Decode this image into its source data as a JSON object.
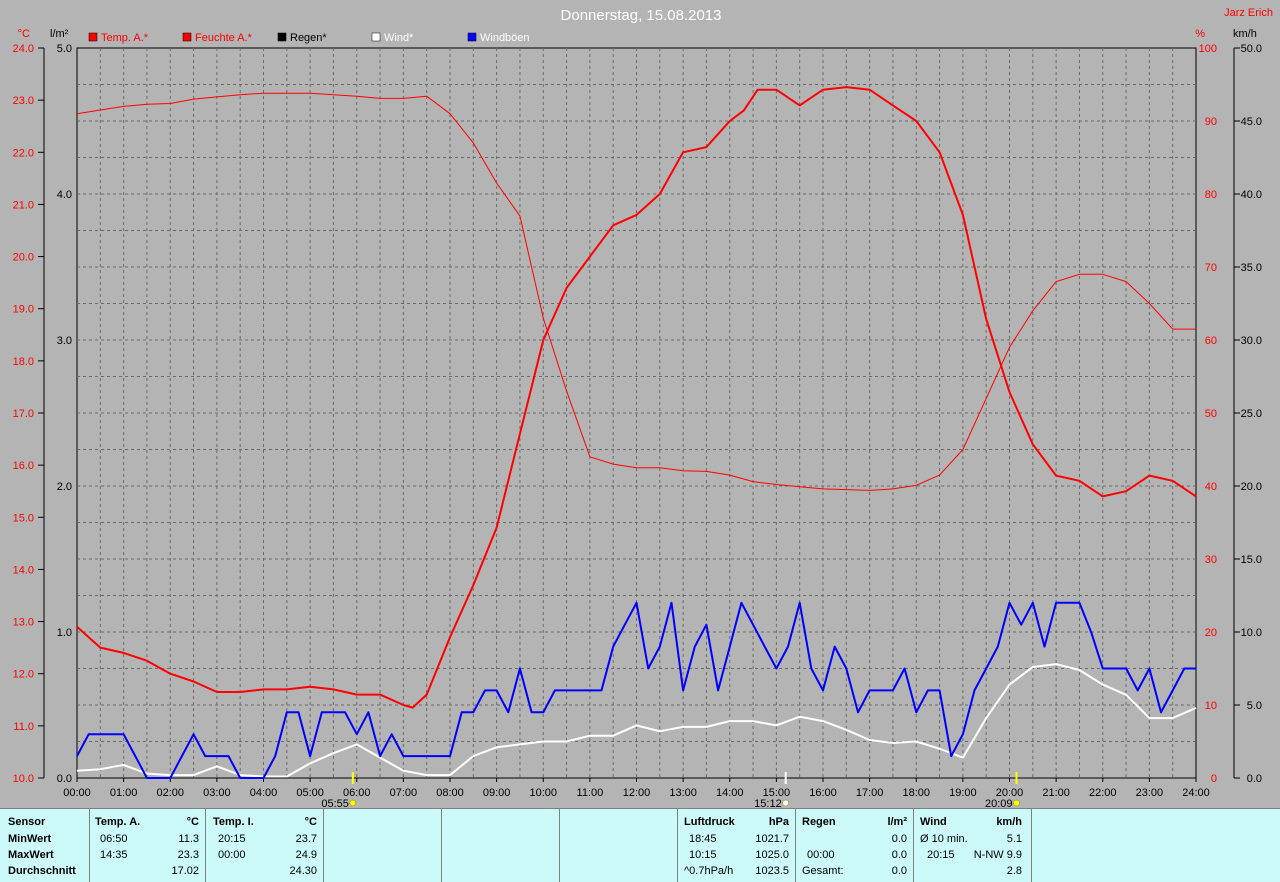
{
  "title": "Donnerstag, 15.08.2013",
  "author": "Jarz Erich",
  "axis_units": {
    "temp": "°C",
    "rain": "l/m²",
    "hum": "%",
    "wind": "km/h"
  },
  "legend": [
    {
      "label": "Temp. A.*",
      "color": "#ff0000",
      "text_color": "#ff0000"
    },
    {
      "label": "Feuchte A.*",
      "color": "#ff0000",
      "text_color": "#ff0000"
    },
    {
      "label": "Regen*",
      "color": "#000000",
      "text_color": "#000000"
    },
    {
      "label": "Wind*",
      "color": "#ffffff",
      "text_color": "#ffffff"
    },
    {
      "label": "Windböen",
      "color": "#0000ff",
      "text_color": "#ffffff"
    }
  ],
  "markers": {
    "sunrise": "05:55",
    "noon": "15:12",
    "sunset": "20:09"
  },
  "chart_data": {
    "type": "line",
    "x_ticks": [
      "00:00",
      "01:00",
      "02:00",
      "03:00",
      "04:00",
      "05:00",
      "06:00",
      "07:00",
      "08:00",
      "09:00",
      "10:00",
      "11:00",
      "12:00",
      "13:00",
      "14:00",
      "15:00",
      "16:00",
      "17:00",
      "18:00",
      "19:00",
      "20:00",
      "21:00",
      "22:00",
      "23:00",
      "24:00"
    ],
    "axes": {
      "temp": {
        "ticks": [
          "10.0",
          "11.0",
          "12.0",
          "13.0",
          "14.0",
          "15.0",
          "16.0",
          "17.0",
          "18.0",
          "19.0",
          "20.0",
          "21.0",
          "22.0",
          "23.0",
          "24.0"
        ],
        "range": [
          10,
          24
        ]
      },
      "rain": {
        "ticks": [
          "0.0",
          "1.0",
          "2.0",
          "3.0",
          "4.0",
          "5.0"
        ],
        "range": [
          0,
          5
        ]
      },
      "hum": {
        "ticks": [
          "0",
          "10",
          "20",
          "30",
          "40",
          "50",
          "60",
          "70",
          "80",
          "90",
          "100"
        ],
        "range": [
          0,
          100
        ]
      },
      "wind": {
        "ticks": [
          "0.0",
          "5.0",
          "10.0",
          "15.0",
          "20.0",
          "25.0",
          "30.0",
          "35.0",
          "40.0",
          "45.0",
          "50.0"
        ],
        "range": [
          0,
          50
        ]
      }
    },
    "grid": true,
    "series": [
      {
        "name": "Temp. A.*",
        "axis": "temp",
        "color": "#ff0000",
        "width": 2,
        "points": [
          [
            0,
            12.9
          ],
          [
            0.5,
            12.5
          ],
          [
            1,
            12.4
          ],
          [
            1.5,
            12.25
          ],
          [
            2,
            12.0
          ],
          [
            2.5,
            11.85
          ],
          [
            3,
            11.65
          ],
          [
            3.5,
            11.65
          ],
          [
            4,
            11.7
          ],
          [
            4.5,
            11.7
          ],
          [
            5,
            11.75
          ],
          [
            5.5,
            11.7
          ],
          [
            6,
            11.6
          ],
          [
            6.5,
            11.6
          ],
          [
            7,
            11.4
          ],
          [
            7.2,
            11.35
          ],
          [
            7.5,
            11.6
          ],
          [
            8,
            12.7
          ],
          [
            8.5,
            13.7
          ],
          [
            9,
            14.8
          ],
          [
            9.5,
            16.6
          ],
          [
            10,
            18.4
          ],
          [
            10.5,
            19.4
          ],
          [
            11,
            20.0
          ],
          [
            11.5,
            20.6
          ],
          [
            12,
            20.8
          ],
          [
            12.5,
            21.2
          ],
          [
            13,
            22.0
          ],
          [
            13.5,
            22.1
          ],
          [
            14,
            22.6
          ],
          [
            14.3,
            22.8
          ],
          [
            14.6,
            23.2
          ],
          [
            15,
            23.2
          ],
          [
            15.5,
            22.9
          ],
          [
            16,
            23.2
          ],
          [
            16.5,
            23.25
          ],
          [
            17,
            23.2
          ],
          [
            17.5,
            22.9
          ],
          [
            18,
            22.6
          ],
          [
            18.5,
            22.0
          ],
          [
            19,
            20.8
          ],
          [
            19.5,
            18.8
          ],
          [
            20,
            17.4
          ],
          [
            20.5,
            16.4
          ],
          [
            21,
            15.8
          ],
          [
            21.5,
            15.7
          ],
          [
            22,
            15.4
          ],
          [
            22.5,
            15.5
          ],
          [
            23,
            15.8
          ],
          [
            23.5,
            15.7
          ],
          [
            24,
            15.4
          ]
        ]
      },
      {
        "name": "Feuchte A.*",
        "axis": "hum",
        "color": "#ff0000",
        "width": 1,
        "points": [
          [
            0,
            91
          ],
          [
            0.5,
            91.5
          ],
          [
            1,
            92
          ],
          [
            1.5,
            92.3
          ],
          [
            2,
            92.4
          ],
          [
            2.5,
            93
          ],
          [
            3,
            93.3
          ],
          [
            3.5,
            93.6
          ],
          [
            4,
            93.8
          ],
          [
            4.5,
            93.8
          ],
          [
            5,
            93.8
          ],
          [
            5.5,
            93.6
          ],
          [
            6,
            93.4
          ],
          [
            6.5,
            93.1
          ],
          [
            7,
            93.1
          ],
          [
            7.5,
            93.4
          ],
          [
            8,
            91
          ],
          [
            8.5,
            87
          ],
          [
            9,
            81.5
          ],
          [
            9.5,
            77
          ],
          [
            10,
            63
          ],
          [
            10.5,
            53
          ],
          [
            11,
            44
          ],
          [
            11.5,
            43
          ],
          [
            12,
            42.5
          ],
          [
            12.5,
            42.5
          ],
          [
            13,
            42.1
          ],
          [
            13.5,
            42
          ],
          [
            14,
            41.5
          ],
          [
            14.5,
            40.6
          ],
          [
            15,
            40.2
          ],
          [
            15.5,
            39.9
          ],
          [
            16,
            39.6
          ],
          [
            16.5,
            39.5
          ],
          [
            17,
            39.4
          ],
          [
            17.5,
            39.6
          ],
          [
            18,
            40.1
          ],
          [
            18.5,
            41.5
          ],
          [
            19,
            45
          ],
          [
            19.5,
            52
          ],
          [
            20,
            59
          ],
          [
            20.5,
            64
          ],
          [
            21,
            68
          ],
          [
            21.5,
            69
          ],
          [
            22,
            69
          ],
          [
            22.5,
            68
          ],
          [
            23,
            65
          ],
          [
            23.5,
            61.5
          ],
          [
            24,
            61.5
          ]
        ]
      },
      {
        "name": "Wind*",
        "axis": "wind",
        "color": "#ffffff",
        "width": 2,
        "points": [
          [
            0,
            0.5
          ],
          [
            0.5,
            0.6
          ],
          [
            1,
            0.9
          ],
          [
            1.5,
            0.3
          ],
          [
            2,
            0.2
          ],
          [
            2.5,
            0.2
          ],
          [
            3,
            0.8
          ],
          [
            3.5,
            0.2
          ],
          [
            4,
            0.1
          ],
          [
            4.5,
            0.1
          ],
          [
            5,
            1.0
          ],
          [
            5.5,
            1.7
          ],
          [
            6,
            2.3
          ],
          [
            6.5,
            1.4
          ],
          [
            7,
            0.5
          ],
          [
            7.5,
            0.2
          ],
          [
            8,
            0.2
          ],
          [
            8.5,
            1.5
          ],
          [
            9,
            2.1
          ],
          [
            9.5,
            2.3
          ],
          [
            10,
            2.5
          ],
          [
            10.5,
            2.5
          ],
          [
            11,
            2.9
          ],
          [
            11.5,
            2.9
          ],
          [
            12,
            3.6
          ],
          [
            12.5,
            3.2
          ],
          [
            13,
            3.5
          ],
          [
            13.5,
            3.5
          ],
          [
            14,
            3.9
          ],
          [
            14.5,
            3.9
          ],
          [
            15,
            3.6
          ],
          [
            15.5,
            4.2
          ],
          [
            16,
            3.9
          ],
          [
            16.5,
            3.3
          ],
          [
            17,
            2.6
          ],
          [
            17.5,
            2.4
          ],
          [
            18,
            2.5
          ],
          [
            18.5,
            2.0
          ],
          [
            19,
            1.4
          ],
          [
            19.5,
            4.1
          ],
          [
            20,
            6.4
          ],
          [
            20.5,
            7.6
          ],
          [
            21,
            7.8
          ],
          [
            21.5,
            7.4
          ],
          [
            22,
            6.4
          ],
          [
            22.5,
            5.7
          ],
          [
            23,
            4.1
          ],
          [
            23.5,
            4.1
          ],
          [
            24,
            4.8
          ]
        ]
      },
      {
        "name": "Windböen",
        "axis": "wind",
        "color": "#0000ff",
        "width": 2,
        "points": [
          [
            0,
            1.5
          ],
          [
            0.25,
            3.0
          ],
          [
            0.5,
            3.0
          ],
          [
            0.75,
            3.0
          ],
          [
            1,
            3.0
          ],
          [
            1.25,
            1.5
          ],
          [
            1.5,
            0
          ],
          [
            1.75,
            0
          ],
          [
            2,
            0
          ],
          [
            2.25,
            1.5
          ],
          [
            2.5,
            3.0
          ],
          [
            2.75,
            1.5
          ],
          [
            3,
            1.5
          ],
          [
            3.25,
            1.5
          ],
          [
            3.5,
            0
          ],
          [
            3.75,
            0
          ],
          [
            4,
            0
          ],
          [
            4.25,
            1.5
          ],
          [
            4.5,
            4.5
          ],
          [
            4.75,
            4.5
          ],
          [
            5,
            1.5
          ],
          [
            5.25,
            4.5
          ],
          [
            5.5,
            4.5
          ],
          [
            5.75,
            4.5
          ],
          [
            6,
            3.0
          ],
          [
            6.25,
            4.5
          ],
          [
            6.5,
            1.5
          ],
          [
            6.75,
            3.0
          ],
          [
            7,
            1.5
          ],
          [
            7.25,
            1.5
          ],
          [
            7.5,
            1.5
          ],
          [
            7.75,
            1.5
          ],
          [
            8,
            1.5
          ],
          [
            8.25,
            4.5
          ],
          [
            8.5,
            4.5
          ],
          [
            8.75,
            6.0
          ],
          [
            9,
            6.0
          ],
          [
            9.25,
            4.5
          ],
          [
            9.5,
            7.5
          ],
          [
            9.75,
            4.5
          ],
          [
            10,
            4.5
          ],
          [
            10.25,
            6.0
          ],
          [
            10.5,
            6.0
          ],
          [
            10.75,
            6.0
          ],
          [
            11,
            6.0
          ],
          [
            11.25,
            6.0
          ],
          [
            11.5,
            9.0
          ],
          [
            11.75,
            10.5
          ],
          [
            12,
            12.0
          ],
          [
            12.25,
            7.5
          ],
          [
            12.5,
            9.0
          ],
          [
            12.75,
            12.0
          ],
          [
            13,
            6.0
          ],
          [
            13.25,
            9.0
          ],
          [
            13.5,
            10.5
          ],
          [
            13.75,
            6.0
          ],
          [
            14,
            9.0
          ],
          [
            14.25,
            12.0
          ],
          [
            14.5,
            10.5
          ],
          [
            14.75,
            9.0
          ],
          [
            15,
            7.5
          ],
          [
            15.25,
            9.0
          ],
          [
            15.5,
            12.0
          ],
          [
            15.75,
            7.5
          ],
          [
            16,
            6.0
          ],
          [
            16.25,
            9.0
          ],
          [
            16.5,
            7.5
          ],
          [
            16.75,
            4.5
          ],
          [
            17,
            6.0
          ],
          [
            17.25,
            6.0
          ],
          [
            17.5,
            6.0
          ],
          [
            17.75,
            7.5
          ],
          [
            18,
            4.5
          ],
          [
            18.25,
            6.0
          ],
          [
            18.5,
            6.0
          ],
          [
            18.75,
            1.5
          ],
          [
            19,
            3.0
          ],
          [
            19.25,
            6.0
          ],
          [
            19.5,
            7.5
          ],
          [
            19.75,
            9.0
          ],
          [
            20,
            12.0
          ],
          [
            20.25,
            10.5
          ],
          [
            20.5,
            12.0
          ],
          [
            20.75,
            9.0
          ],
          [
            21,
            12.0
          ],
          [
            21.25,
            12.0
          ],
          [
            21.5,
            12.0
          ],
          [
            21.75,
            10.0
          ],
          [
            22,
            7.5
          ],
          [
            22.25,
            7.5
          ],
          [
            22.5,
            7.5
          ],
          [
            22.75,
            6.0
          ],
          [
            23,
            7.5
          ],
          [
            23.25,
            4.5
          ],
          [
            23.5,
            6.0
          ],
          [
            23.75,
            7.5
          ],
          [
            24,
            7.5
          ]
        ]
      }
    ]
  },
  "stats": {
    "sensor": {
      "header": "Sensor",
      "rows": [
        "MinWert",
        "MaxWert",
        "Durchschnitt"
      ]
    },
    "temp_a": {
      "header": "Temp. A.",
      "unit": "°C",
      "rows": [
        {
          "time": "06:50",
          "value": "11.3"
        },
        {
          "time": "14:35",
          "value": "23.3"
        },
        {
          "time": "",
          "value": "17.02"
        }
      ]
    },
    "temp_i": {
      "header": "Temp. I.",
      "unit": "°C",
      "rows": [
        {
          "time": "20:15",
          "value": "23.7"
        },
        {
          "time": "00:00",
          "value": "24.9"
        },
        {
          "time": "",
          "value": "24.30"
        }
      ]
    },
    "pressure": {
      "header": "Luftdruck",
      "unit": "hPa",
      "rows": [
        {
          "time": "18:45",
          "value": "1021.7"
        },
        {
          "time": "10:15",
          "value": "1025.0"
        },
        {
          "time": "^0.7hPa/h",
          "value": "1023.5"
        }
      ]
    },
    "rain": {
      "header": "Regen",
      "unit": "l/m²",
      "rows": [
        {
          "time": "",
          "value": ""
        },
        {
          "time": "00:00",
          "value": "0.0"
        },
        {
          "time": "Gesamt:",
          "value": "0.0"
        }
      ],
      "top_value": "0.0"
    },
    "wind": {
      "header": "Wind",
      "unit": "km/h",
      "rows": [
        {
          "time": "Ø 10 min.",
          "value": "5.1"
        },
        {
          "time": "20:15",
          "value": "N-NW 9.9"
        },
        {
          "time": "",
          "value": "2.8"
        }
      ]
    }
  }
}
